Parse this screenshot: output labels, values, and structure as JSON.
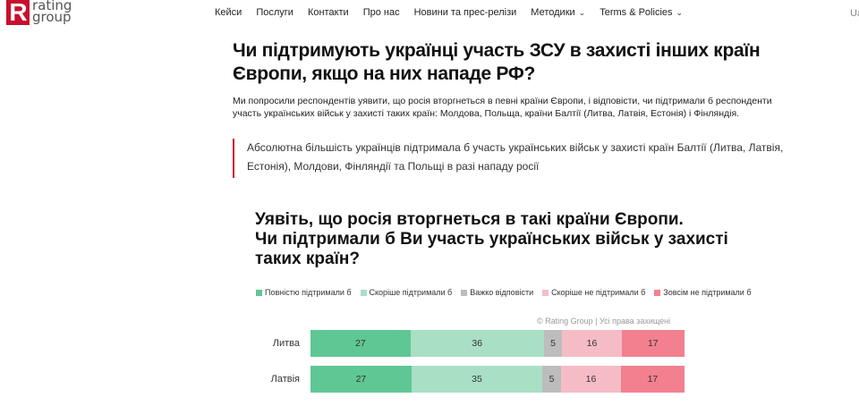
{
  "header": {
    "logo": {
      "mark": "R",
      "line1": "rating",
      "line2": "group"
    },
    "nav": [
      {
        "label": "Кейси",
        "dropdown": false
      },
      {
        "label": "Послуги",
        "dropdown": false
      },
      {
        "label": "Контакти",
        "dropdown": false
      },
      {
        "label": "Про нас",
        "dropdown": false
      },
      {
        "label": "Новини та прес-релізи",
        "dropdown": false
      },
      {
        "label": "Методики",
        "dropdown": true
      },
      {
        "label": "Terms & Policies",
        "dropdown": true
      }
    ],
    "lang": "Ua"
  },
  "article": {
    "title": "Чи підтримують українці участь ЗСУ в захисті інших країн Європи, якщо на них нападе РФ?",
    "lead": "Ми попросили респондентів уявити, що росія вторгнеться в певні країни Європи, і відповісти, чи підтримали б респонденти участь українських військ у захисті таких країн: Молдова, Польща, країни Балтії (Литва, Латвія, Естонія) і Фінляндія.",
    "quote": "Абсолютна більшість українців підтримала б участь українських військ у захисті країн Балтії (Литва, Латвія, Естонія), Молдови, Фінляндії та Польщі в разі нападу росії"
  },
  "chart_data": {
    "type": "bar",
    "orientation": "horizontal-stacked",
    "title_lines": [
      "Уявіть, що росія вторгнеться в такі країни Європи.",
      "Чи підтримали б Ви участь українських військ у захисті",
      "таких країн?"
    ],
    "copyright": "© Rating Group | Усі права захищені",
    "categories": [
      "Литва",
      "Латвія"
    ],
    "series": [
      {
        "name": "Повністю підтримали б",
        "color": "#5fc794",
        "values": [
          27,
          27
        ]
      },
      {
        "name": "Скоріше підтримали б",
        "color": "#a9e0c5",
        "values": [
          36,
          35
        ]
      },
      {
        "name": "Важко відповісти",
        "color": "#bdbdbd",
        "values": [
          5,
          5
        ]
      },
      {
        "name": "Скоріше не підтримали б",
        "color": "#f6bcc6",
        "values": [
          16,
          16
        ]
      },
      {
        "name": "Зовсім не підтримали б",
        "color": "#f2808f",
        "values": [
          17,
          17
        ]
      }
    ],
    "legend_position": "top"
  }
}
